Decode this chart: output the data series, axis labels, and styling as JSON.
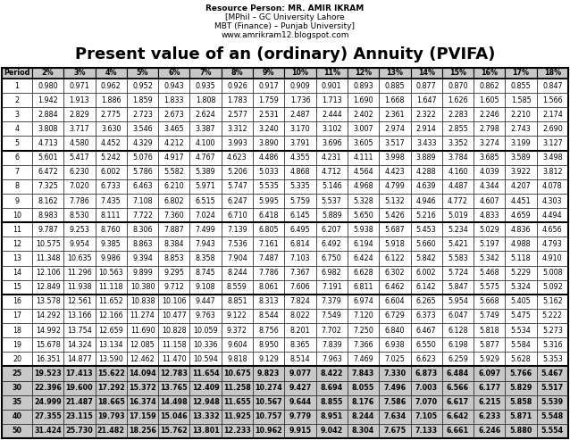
{
  "header_line1": "Resource Person: MR. AMIR IKRAM",
  "header_line2": "[MPhil – GC University Lahore",
  "header_line3": "MBT (Finance) – Punjab University]",
  "header_line4": "www.amrikram12.blogspot.com",
  "title": "Present value of an (ordinary) Annuity (PVIFA)",
  "columns": [
    "Period",
    "2%",
    "3%",
    "4%",
    "5%",
    "6%",
    "7%",
    "8%",
    "9%",
    "10%",
    "11%",
    "12%",
    "13%",
    "14%",
    "15%",
    "16%",
    "17%",
    "18%"
  ],
  "rows": [
    [
      1,
      0.98,
      0.971,
      0.962,
      0.952,
      0.943,
      0.935,
      0.926,
      0.917,
      0.909,
      0.901,
      0.893,
      0.885,
      0.877,
      0.87,
      0.862,
      0.855,
      0.847
    ],
    [
      2,
      1.942,
      1.913,
      1.886,
      1.859,
      1.833,
      1.808,
      1.783,
      1.759,
      1.736,
      1.713,
      1.69,
      1.668,
      1.647,
      1.626,
      1.605,
      1.585,
      1.566
    ],
    [
      3,
      2.884,
      2.829,
      2.775,
      2.723,
      2.673,
      2.624,
      2.577,
      2.531,
      2.487,
      2.444,
      2.402,
      2.361,
      2.322,
      2.283,
      2.246,
      2.21,
      2.174
    ],
    [
      4,
      3.808,
      3.717,
      3.63,
      3.546,
      3.465,
      3.387,
      3.312,
      3.24,
      3.17,
      3.102,
      3.007,
      2.974,
      2.914,
      2.855,
      2.798,
      2.743,
      2.69
    ],
    [
      5,
      4.713,
      4.58,
      4.452,
      4.329,
      4.212,
      4.1,
      3.993,
      3.89,
      3.791,
      3.696,
      3.605,
      3.517,
      3.433,
      3.352,
      3.274,
      3.199,
      3.127
    ],
    [
      6,
      5.601,
      5.417,
      5.242,
      5.076,
      4.917,
      4.767,
      4.623,
      4.486,
      4.355,
      4.231,
      4.111,
      3.998,
      3.889,
      3.784,
      3.685,
      3.589,
      3.498
    ],
    [
      7,
      6.472,
      6.23,
      6.002,
      5.786,
      5.582,
      5.389,
      5.206,
      5.033,
      4.868,
      4.712,
      4.564,
      4.423,
      4.288,
      4.16,
      4.039,
      3.922,
      3.812
    ],
    [
      8,
      7.325,
      7.02,
      6.733,
      6.463,
      6.21,
      5.971,
      5.747,
      5.535,
      5.335,
      5.146,
      4.968,
      4.799,
      4.639,
      4.487,
      4.344,
      4.207,
      4.078
    ],
    [
      9,
      8.162,
      7.786,
      7.435,
      7.108,
      6.802,
      6.515,
      6.247,
      5.995,
      5.759,
      5.537,
      5.328,
      5.132,
      4.946,
      4.772,
      4.607,
      4.451,
      4.303
    ],
    [
      10,
      8.983,
      8.53,
      8.111,
      7.722,
      7.36,
      7.024,
      6.71,
      6.418,
      6.145,
      5.889,
      5.65,
      5.426,
      5.216,
      5.019,
      4.833,
      4.659,
      4.494
    ],
    [
      11,
      9.787,
      9.253,
      8.76,
      8.306,
      7.887,
      7.499,
      7.139,
      6.805,
      6.495,
      6.207,
      5.938,
      5.687,
      5.453,
      5.234,
      5.029,
      4.836,
      4.656
    ],
    [
      12,
      10.575,
      9.954,
      9.385,
      8.863,
      8.384,
      7.943,
      7.536,
      7.161,
      6.814,
      6.492,
      6.194,
      5.918,
      5.66,
      5.421,
      5.197,
      4.988,
      4.793
    ],
    [
      13,
      11.348,
      10.635,
      9.986,
      9.394,
      8.853,
      8.358,
      7.904,
      7.487,
      7.103,
      6.75,
      6.424,
      6.122,
      5.842,
      5.583,
      5.342,
      5.118,
      4.91
    ],
    [
      14,
      12.106,
      11.296,
      10.563,
      9.899,
      9.295,
      8.745,
      8.244,
      7.786,
      7.367,
      6.982,
      6.628,
      6.302,
      6.002,
      5.724,
      5.468,
      5.229,
      5.008
    ],
    [
      15,
      12.849,
      11.938,
      11.118,
      10.38,
      9.712,
      9.108,
      8.559,
      8.061,
      7.606,
      7.191,
      6.811,
      6.462,
      6.142,
      5.847,
      5.575,
      5.324,
      5.092
    ],
    [
      16,
      13.578,
      12.561,
      11.652,
      10.838,
      10.106,
      9.447,
      8.851,
      8.313,
      7.824,
      7.379,
      6.974,
      6.604,
      6.265,
      5.954,
      5.668,
      5.405,
      5.162
    ],
    [
      17,
      14.292,
      13.166,
      12.166,
      11.274,
      10.477,
      9.763,
      9.122,
      8.544,
      8.022,
      7.549,
      7.12,
      6.729,
      6.373,
      6.047,
      5.749,
      5.475,
      5.222
    ],
    [
      18,
      14.992,
      13.754,
      12.659,
      11.69,
      10.828,
      10.059,
      9.372,
      8.756,
      8.201,
      7.702,
      7.25,
      6.84,
      6.467,
      6.128,
      5.818,
      5.534,
      5.273
    ],
    [
      19,
      15.678,
      14.324,
      13.134,
      12.085,
      11.158,
      10.336,
      9.604,
      8.95,
      8.365,
      7.839,
      7.366,
      6.938,
      6.55,
      6.198,
      5.877,
      5.584,
      5.316
    ],
    [
      20,
      16.351,
      14.877,
      13.59,
      12.462,
      11.47,
      10.594,
      9.818,
      9.129,
      8.514,
      7.963,
      7.469,
      7.025,
      6.623,
      6.259,
      5.929,
      5.628,
      5.353
    ],
    [
      25,
      19.523,
      17.413,
      15.622,
      14.094,
      12.783,
      11.654,
      10.675,
      9.823,
      9.077,
      8.422,
      7.843,
      7.33,
      6.873,
      6.484,
      6.097,
      5.766,
      5.467
    ],
    [
      30,
      22.396,
      19.6,
      17.292,
      15.372,
      13.765,
      12.409,
      11.258,
      10.274,
      9.427,
      8.694,
      8.055,
      7.496,
      7.003,
      6.566,
      6.177,
      5.829,
      5.517
    ],
    [
      35,
      24.999,
      21.487,
      18.665,
      16.374,
      14.498,
      12.948,
      11.655,
      10.567,
      9.644,
      8.855,
      8.176,
      7.586,
      7.07,
      6.617,
      6.215,
      5.858,
      5.539
    ],
    [
      40,
      27.355,
      23.115,
      19.793,
      17.159,
      15.046,
      13.332,
      11.925,
      10.757,
      9.779,
      8.951,
      8.244,
      7.634,
      7.105,
      6.642,
      6.233,
      5.871,
      5.548
    ],
    [
      50,
      31.424,
      25.73,
      21.482,
      18.256,
      15.762,
      13.801,
      12.233,
      10.962,
      9.915,
      9.042,
      8.304,
      7.675,
      7.133,
      6.661,
      6.246,
      5.88,
      5.554
    ]
  ],
  "group_separators": [
    5,
    10,
    15,
    20
  ],
  "bold_periods": [
    25,
    30,
    35,
    40,
    50
  ],
  "bg_header": "#c8c8c8",
  "bg_white": "#ffffff",
  "border_color": "#000000",
  "text_color": "#000000",
  "header_resource_fontsize": 6.5,
  "header_title_fontsize": 13,
  "table_fontsize": 5.8
}
